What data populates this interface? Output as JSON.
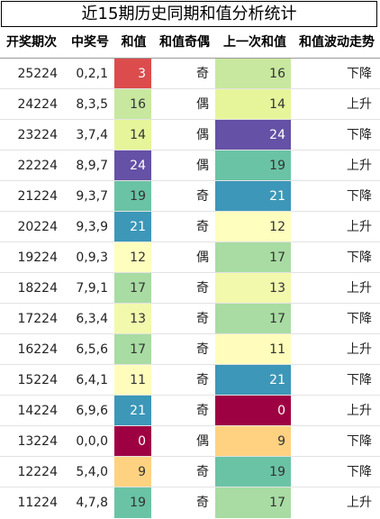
{
  "table": {
    "title": "近15期历史同期和值分析统计",
    "header": [
      "开奖期次",
      "中奖号",
      "和值",
      "和值奇偶",
      "上一次和值",
      "和值波动走势"
    ],
    "rows": [
      [
        "25224",
        "0,2,1",
        3,
        "奇",
        16,
        "下降"
      ],
      [
        "24224",
        "8,3,5",
        16,
        "偶",
        14,
        "上升"
      ],
      [
        "23224",
        "3,7,4",
        14,
        "偶",
        24,
        "下降"
      ],
      [
        "22224",
        "8,9,7",
        24,
        "偶",
        19,
        "上升"
      ],
      [
        "21224",
        "9,3,7",
        19,
        "奇",
        21,
        "下降"
      ],
      [
        "20224",
        "9,3,9",
        21,
        "奇",
        12,
        "上升"
      ],
      [
        "19224",
        "0,9,3",
        12,
        "偶",
        17,
        "下降"
      ],
      [
        "18224",
        "7,9,1",
        17,
        "奇",
        13,
        "上升"
      ],
      [
        "17224",
        "6,3,4",
        13,
        "奇",
        17,
        "下降"
      ],
      [
        "16224",
        "6,5,6",
        17,
        "奇",
        11,
        "上升"
      ],
      [
        "15224",
        "6,4,1",
        11,
        "奇",
        21,
        "下降"
      ],
      [
        "14224",
        "6,9,6",
        21,
        "奇",
        0,
        "上升"
      ],
      [
        "13224",
        "0,0,0",
        0,
        "偶",
        9,
        "下降"
      ],
      [
        "12224",
        "5,4,0",
        9,
        "奇",
        19,
        "下降"
      ],
      [
        "11224",
        "4,7,8",
        19,
        "奇",
        17,
        "上升"
      ]
    ],
    "cell_colors": [
      [
        "#dc4c4c",
        "#c7e89e"
      ],
      [
        "#c7e89e",
        "#e6f59a"
      ],
      [
        "#e6f59a",
        "#6551a5"
      ],
      [
        "#6551a5",
        "#6ac3a5"
      ],
      [
        "#6ac3a5",
        "#3d97b8"
      ],
      [
        "#3d97b8",
        "#fefebe"
      ],
      [
        "#fefebe",
        "#a8dca2"
      ],
      [
        "#a8dca2",
        "#f2f9ac"
      ],
      [
        "#f2f9ac",
        "#a8dca2"
      ],
      [
        "#a8dca2",
        "#fffcbc"
      ],
      [
        "#fffcbc",
        "#3d97b8"
      ],
      [
        "#3d97b8",
        "#9e0142"
      ],
      [
        "#9e0142",
        "#fed281"
      ],
      [
        "#fed281",
        "#6ac3a5"
      ],
      [
        "#6ac3a5",
        "#a8dca2"
      ]
    ]
  }
}
